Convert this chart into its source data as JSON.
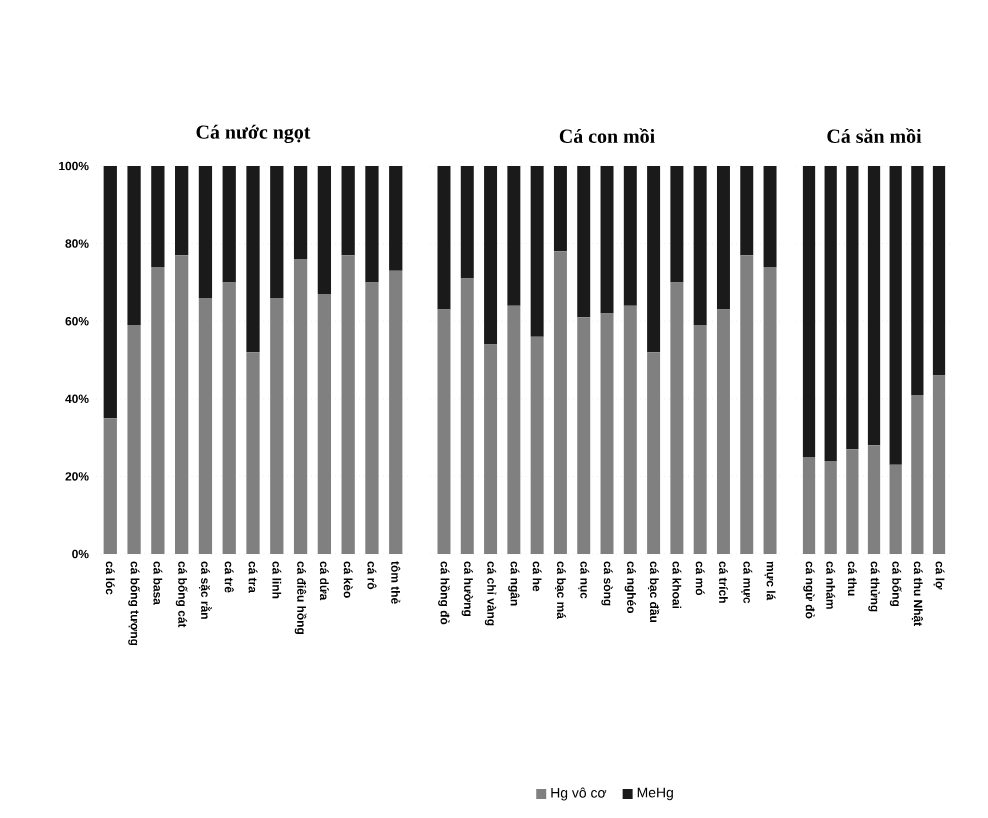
{
  "chart_data": [
    {
      "type": "bar",
      "title": "Cá nước ngọt",
      "stacked": true,
      "grid": "y",
      "categories": [
        "cá lóc",
        "cá bống tượng",
        "cá basa",
        "cá bống cát",
        "cá sặc rằn",
        "cá trê",
        "cá tra",
        "cá linh",
        "cá điêu hồng",
        "cá dứa",
        "cá kèo",
        "cá rô",
        "tôm thẻ"
      ],
      "series": [
        {
          "color": "#808080",
          "values": [
            35,
            59,
            74,
            77,
            66,
            70,
            52,
            66,
            76,
            67,
            77,
            70,
            73
          ]
        },
        {
          "color": "#1a1a1a",
          "values": [
            65,
            41,
            26,
            23,
            34,
            30,
            48,
            34,
            24,
            33,
            23,
            30,
            27
          ]
        }
      ],
      "ylim": [
        0,
        100
      ],
      "yticks": [
        {
          "value": 0,
          "label": "0%"
        },
        {
          "value": 20,
          "label": "20%"
        },
        {
          "value": 40,
          "label": "40%"
        },
        {
          "value": 60,
          "label": "60%"
        },
        {
          "value": 80,
          "label": "80%"
        },
        {
          "value": 100,
          "label": "100%"
        }
      ]
    },
    {
      "type": "bar",
      "title": "Cá con mồi",
      "stacked": true,
      "grid": "y",
      "legend": "bottom",
      "tick_labels": "x",
      "categories": [
        "cá hồng đỏ",
        "cá hường",
        "cá chỉ vàng",
        "cá ngân",
        "cá he",
        "cá bạc má",
        "cá nục",
        "cá sòng",
        "cá nghéo",
        "cá bạc đầu",
        "cá khoai",
        "cá mó",
        "cá trích",
        "cá mực",
        "mực lá"
      ],
      "series": [
        {
          "name": "Hg vô cơ",
          "color": "#808080",
          "values": [
            63,
            71,
            54,
            64,
            56,
            78,
            61,
            62,
            64,
            52,
            70,
            59,
            63,
            77,
            74
          ]
        },
        {
          "name": "MeHg",
          "color": "#1a1a1a",
          "values": [
            37,
            29,
            46,
            36,
            44,
            22,
            39,
            38,
            36,
            48,
            30,
            41,
            37,
            23,
            26
          ]
        }
      ],
      "ylim": [
        0,
        100
      ],
      "yticks": [
        {
          "value": 0,
          "label": null
        },
        {
          "value": 20,
          "label": null
        },
        {
          "value": 40,
          "label": null
        },
        {
          "value": 60,
          "label": null
        },
        {
          "value": 80,
          "label": null
        },
        {
          "value": 100,
          "label": null
        }
      ]
    },
    {
      "type": "bar",
      "title": "Cá săn mồi",
      "stacked": true,
      "grid": "y",
      "tick_labels": "x",
      "categories": [
        "cá ngừ đỏ",
        "cá nhám",
        "cá thu",
        "cá thửng",
        "cá bống",
        "cá thu Nhật",
        "cá lợ"
      ],
      "series": [
        {
          "color": "#808080",
          "values": [
            25,
            24,
            27,
            28,
            23,
            41,
            46
          ]
        },
        {
          "color": "#1a1a1a",
          "values": [
            75,
            76,
            73,
            72,
            77,
            59,
            54
          ]
        }
      ],
      "ylim": [
        0,
        100
      ],
      "yticks": [
        {
          "value": 0,
          "label": null
        },
        {
          "value": 20,
          "label": null
        },
        {
          "value": 40,
          "label": null
        },
        {
          "value": 60,
          "label": null
        },
        {
          "value": 80,
          "label": null
        },
        {
          "value": 100,
          "label": null
        }
      ]
    }
  ]
}
